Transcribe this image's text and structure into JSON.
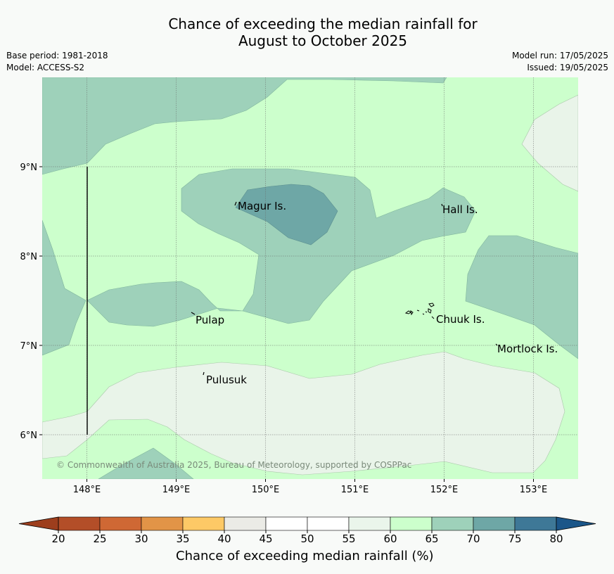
{
  "header": {
    "title_line1": "Chance of exceeding the median rainfall for",
    "title_line2": "August to October 2025",
    "base_period": "Base period: 1981-2018",
    "model": "Model: ACCESS-S2",
    "model_run": "Model run: 17/05/2025",
    "issued": "Issued: 19/05/2025"
  },
  "map": {
    "lon_ticks": [
      "148°E",
      "149°E",
      "150°E",
      "151°E",
      "152°E",
      "153°E"
    ],
    "lat_ticks": [
      "9°N",
      "8°N",
      "7°N",
      "6°N"
    ],
    "places": [
      {
        "name": "Magur Is."
      },
      {
        "name": "Hall Is."
      },
      {
        "name": "Pulap"
      },
      {
        "name": "Chuuk Is."
      },
      {
        "name": "Mortlock Is."
      },
      {
        "name": "Pulusuk"
      }
    ],
    "copyright": "© Commonwealth of Australia 2025, Bureau of Meteorology, supported by COSPPac",
    "category_colors": {
      "40-55": "#e9f4e9",
      "55-65": "#ccffcc",
      "65-70": "#9ed1ba",
      "70-75": "#6ea7a6"
    }
  },
  "colorbar": {
    "title": "Chance of exceeding median rainfall (%)",
    "ticks": [
      "20",
      "25",
      "30",
      "35",
      "40",
      "45",
      "50",
      "55",
      "60",
      "65",
      "70",
      "75",
      "80"
    ],
    "colors": [
      "#b34e28",
      "#cf6834",
      "#e29447",
      "#fdc966",
      "#ebebe6",
      "#ffffff",
      "#ffffff",
      "#eaf5eb",
      "#ccffcc",
      "#9ed1ba",
      "#6ea7a6",
      "#3e7897"
    ],
    "under_color": "#9d3e1d",
    "over_color": "#1b5689"
  }
}
